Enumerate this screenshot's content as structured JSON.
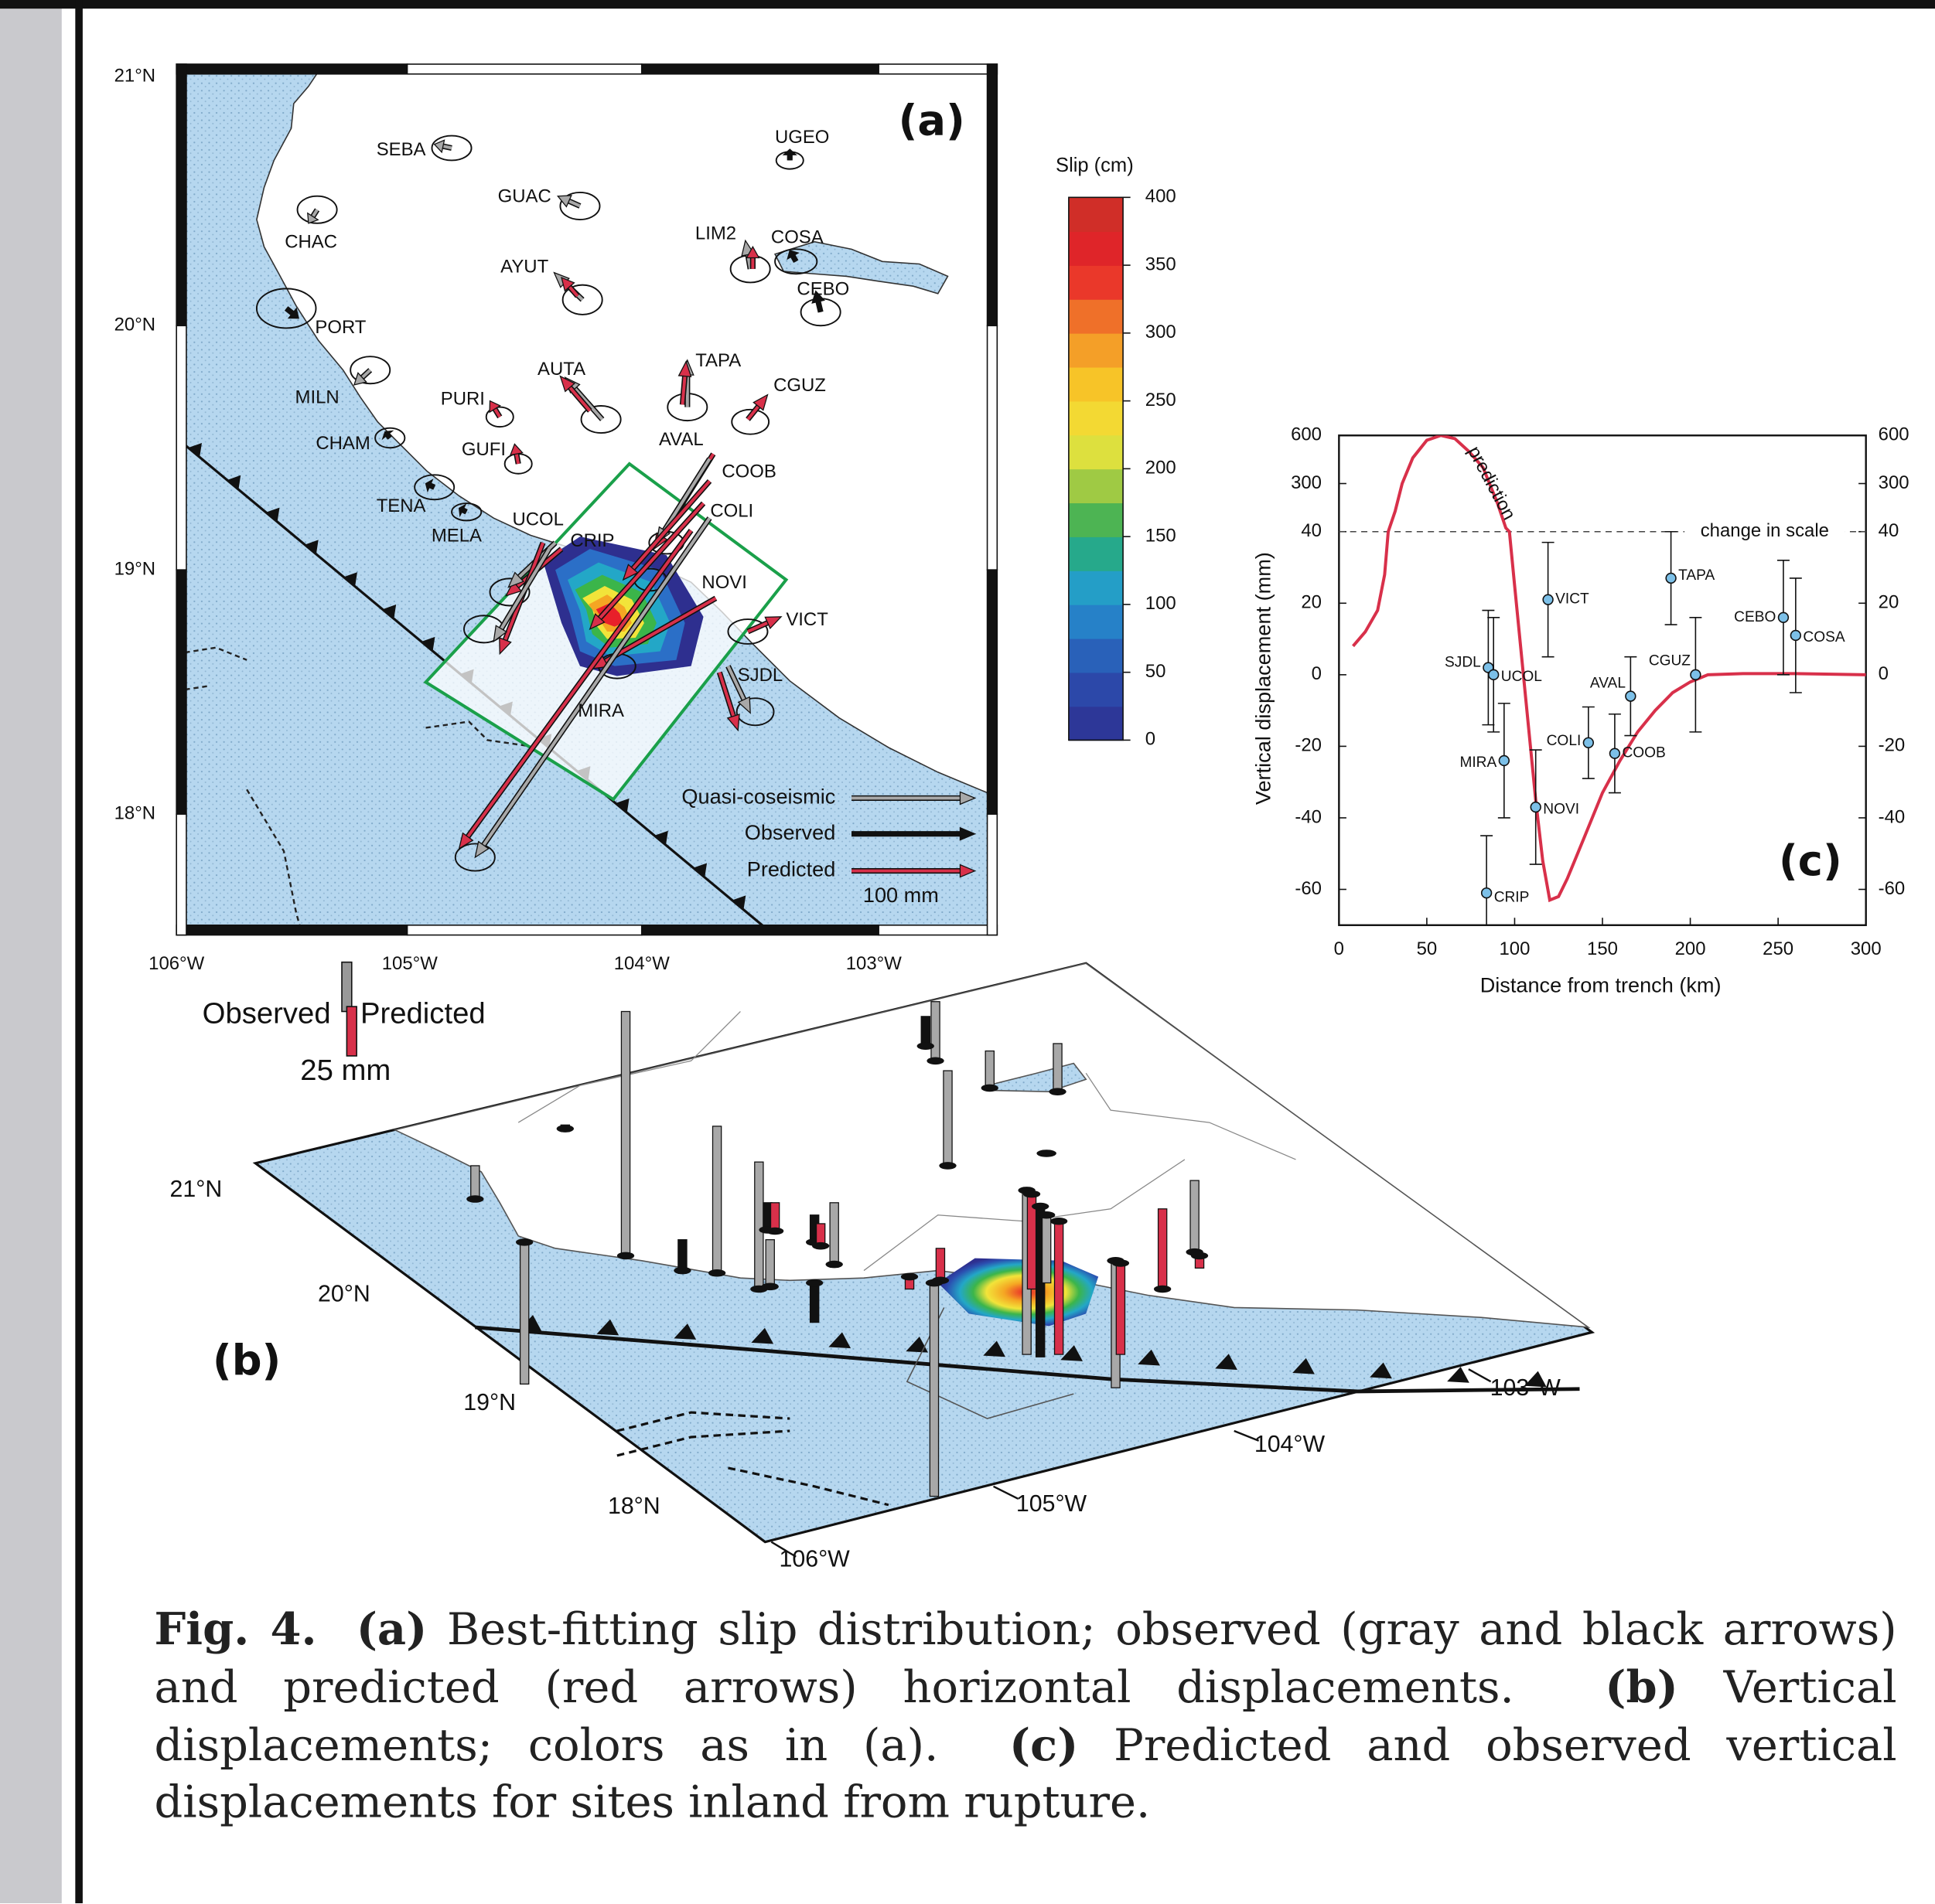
{
  "panel_a": {
    "label": "(a)",
    "lat_labels": [
      "21°N",
      "20°N",
      "19°N",
      "18°N"
    ],
    "lon_labels": [
      "106°W",
      "105°W",
      "104°W",
      "103°W"
    ],
    "stations": [
      "SEBA",
      "GUAC",
      "UGEO",
      "CHAC",
      "LIM2",
      "COSA",
      "AYUT",
      "CEBO",
      "PORT",
      "AUTA",
      "TAPA",
      "CGUZ",
      "MILN",
      "PURI",
      "CHAM",
      "GUFI",
      "AVAL",
      "COOB",
      "TENA",
      "MELA",
      "UCOL",
      "COLI",
      "CRIP",
      "NOVI",
      "VICT",
      "SJDL",
      "MIRA"
    ],
    "colorbar": {
      "title": "Slip (cm)",
      "lim": [
        0,
        400
      ],
      "ticks": [
        0,
        50,
        100,
        150,
        200,
        250,
        300,
        350,
        400
      ]
    },
    "legend": {
      "quasi": "Quasi-coseismic",
      "observed": "Observed",
      "predicted": "Predicted",
      "scale": "100 mm"
    }
  },
  "panel_b": {
    "label": "(b)",
    "lat_labels": [
      "21°N",
      "20°N",
      "19°N",
      "18°N"
    ],
    "lon_labels": [
      "106°W",
      "105°W",
      "104°W",
      "103°W"
    ],
    "legend": {
      "observed": "Observed",
      "predicted": "Predicted",
      "scale": "25 mm"
    }
  },
  "chart_data": {
    "type": "scatter",
    "panel_label": "(c)",
    "xlabel": "Distance from trench (km)",
    "ylabel": "Vertical displacement (mm)",
    "xlim": [
      0,
      300
    ],
    "xticks": [
      0,
      50,
      100,
      150,
      200,
      250,
      300
    ],
    "ylim": [
      -70,
      600
    ],
    "yticks": [
      -60,
      -40,
      -20,
      0,
      20,
      40,
      300,
      600
    ],
    "scale_break": 40,
    "scale_break_label": "change in scale",
    "series": [
      {
        "name": "prediction",
        "color": "#d8304a",
        "x": [
          8,
          15,
          22,
          26,
          28,
          32,
          36,
          42,
          50,
          58,
          66,
          74,
          82,
          90,
          95,
          97,
          100,
          104,
          108,
          112,
          116,
          120,
          125,
          130,
          140,
          150,
          160,
          170,
          180,
          190,
          200,
          210,
          230,
          260,
          300
        ],
        "values": [
          8,
          12,
          18,
          28,
          40,
          150,
          300,
          460,
          570,
          600,
          580,
          500,
          400,
          200,
          60,
          40,
          25,
          5,
          -15,
          -35,
          -52,
          -63,
          -62,
          -57,
          -45,
          -33,
          -24,
          -16,
          -10,
          -5,
          -2,
          0,
          0.3,
          0.3,
          0
        ]
      }
    ],
    "points": {
      "color": "#7cc0e8",
      "labels": [
        "CRIP",
        "SJDL",
        "UCOL",
        "MIRA",
        "NOVI",
        "VICT",
        "COLI",
        "COOB",
        "AVAL",
        "TAPA",
        "CGUZ",
        "CEBO",
        "COSA"
      ],
      "x": [
        84,
        85,
        88,
        94,
        112,
        119,
        142,
        157,
        166,
        189,
        203,
        253,
        260
      ],
      "values": [
        -61,
        2,
        0,
        -24,
        -37,
        21,
        -19,
        -22,
        -6,
        27,
        0,
        16,
        11
      ],
      "errors": [
        16,
        16,
        16,
        16,
        16,
        16,
        10,
        11,
        11,
        13,
        16,
        16,
        16
      ]
    }
  },
  "caption": {
    "label": "Fig. 4.",
    "parts": [
      {
        "label": "(a)",
        "text": "Best-fitting slip distribution; observed (gray and black arrows) and predicted (red arrows) horizontal displacements."
      },
      {
        "label": "(b)",
        "text": "Vertical displacements; colors as in (a)."
      },
      {
        "label": "(c)",
        "text": "Predicted and observed vertical displacements for sites inland from rupture."
      }
    ]
  }
}
